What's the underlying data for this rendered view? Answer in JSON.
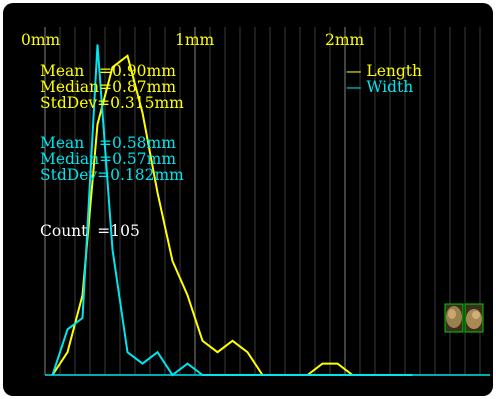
{
  "colors": {
    "length": "#ffff00",
    "width": "#00e5ee",
    "count": "#ffffff",
    "grid": "#4a4a4a",
    "major_grid": "#6e6e6e",
    "thumbnail_border": "#00cc00"
  },
  "axis": {
    "ticks": [
      "0mm",
      "1mm",
      "2mm"
    ]
  },
  "legend": {
    "length": "— Length",
    "width": "— Width"
  },
  "length_stats": {
    "mean": "Mean   =0.90mm",
    "median": "Median=0.87mm",
    "stddev": "StdDev=0.315mm"
  },
  "width_stats": {
    "mean": "Mean   =0.58mm",
    "median": "Median=0.57mm",
    "stddev": "StdDev=0.182mm"
  },
  "count": "Count  =105",
  "thumbnails": [
    "particle-thumbnail-1",
    "particle-thumbnail-2"
  ],
  "chart_data": {
    "type": "line",
    "xlabel": "",
    "ylabel": "",
    "xlim": [
      0,
      3
    ],
    "x": [
      0.05,
      0.15,
      0.25,
      0.35,
      0.45,
      0.55,
      0.65,
      0.75,
      0.85,
      0.95,
      1.05,
      1.15,
      1.25,
      1.35,
      1.45,
      1.55,
      1.65,
      1.75,
      1.85,
      1.95,
      2.05,
      2.15,
      2.25,
      2.35,
      2.45
    ],
    "series": [
      {
        "name": "Length",
        "values": [
          0,
          2,
          7,
          22,
          27,
          28,
          23,
          16,
          10,
          7,
          3,
          2,
          3,
          2,
          0,
          0,
          0,
          0,
          1,
          1,
          0,
          0,
          0,
          0,
          0
        ]
      },
      {
        "name": "Width",
        "values": [
          0,
          4,
          5,
          29,
          11,
          2,
          1,
          2,
          0,
          1,
          0,
          0,
          0,
          0,
          0,
          0,
          0,
          0,
          0,
          0,
          0,
          0,
          0,
          0,
          0
        ]
      }
    ]
  }
}
